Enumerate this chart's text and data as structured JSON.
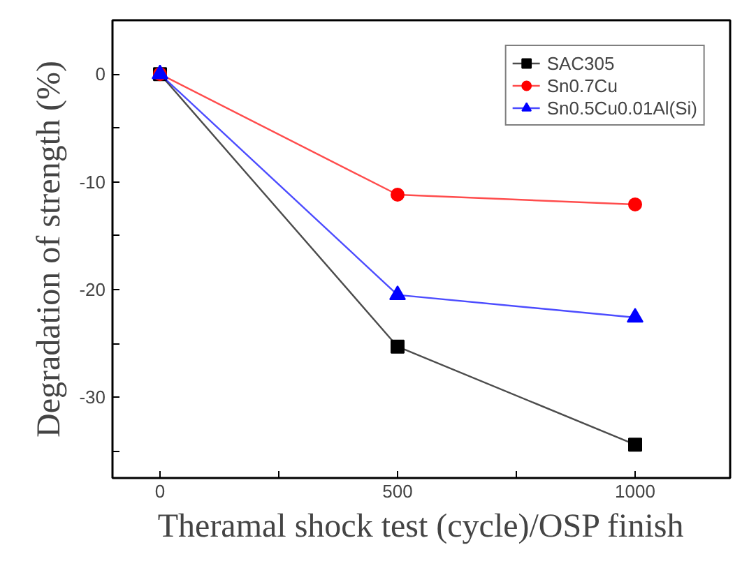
{
  "chart_data": {
    "type": "line",
    "xlabel": "Theramal shock test (cycle)/OSP finish",
    "ylabel": "Degradation of strength (%)",
    "x": [
      0,
      500,
      1000
    ],
    "xlim": [
      -100,
      1200
    ],
    "ylim": [
      -37.5,
      5
    ],
    "xticks": [
      0,
      {
        "value": 250,
        "label": null
      },
      500,
      {
        "value": 750,
        "label": null
      },
      1000
    ],
    "yticks": [
      {
        "value": -35,
        "label": null
      },
      -30,
      {
        "value": -25,
        "label": null
      },
      -20,
      {
        "value": -15,
        "label": null
      },
      -10,
      {
        "value": -5,
        "label": null
      },
      0
    ],
    "grid": false,
    "legend": "top right",
    "line_style": "solid",
    "series": [
      {
        "name": "SAC305",
        "color": "#000000",
        "marker": "square",
        "values": [
          0,
          -25.3,
          -34.4
        ]
      },
      {
        "name": "Sn0.7Cu",
        "color": "#ff0000",
        "marker": "circle",
        "values": [
          0,
          -11.2,
          -12.1
        ]
      },
      {
        "name": "Sn0.5Cu0.01Al(Si)",
        "color": "#0000ff",
        "marker": "triangle",
        "values": [
          0,
          -20.5,
          -22.6
        ]
      }
    ]
  }
}
